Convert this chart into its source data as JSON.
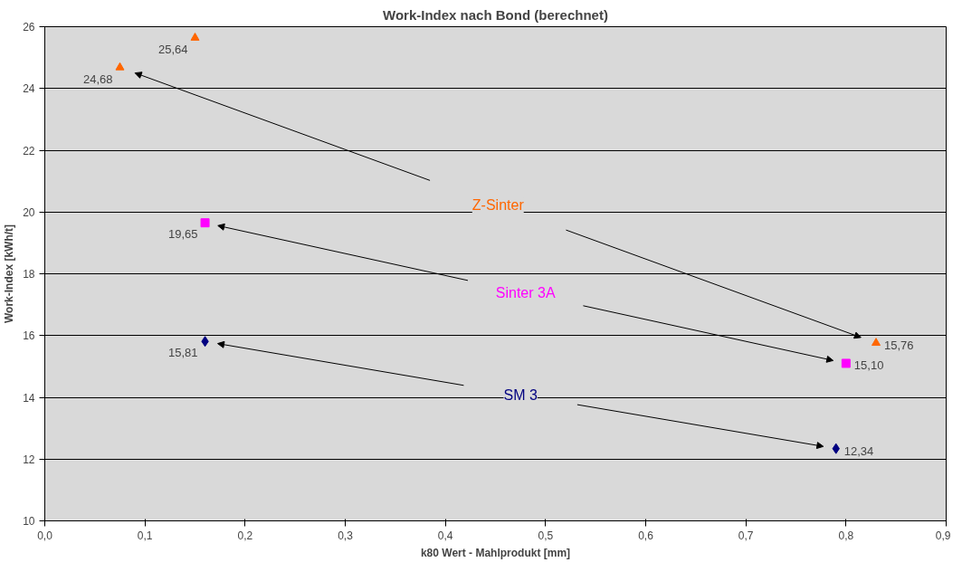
{
  "chart_data": {
    "type": "scatter",
    "title": "Work-Index nach Bond (berechnet)",
    "xlabel": "k80 Wert - Mahlprodukt [mm]",
    "ylabel": "Work-Index [kWh/t]",
    "xlim": [
      0,
      0.9
    ],
    "xticks": [
      {
        "value": 0,
        "label": "0,0"
      },
      {
        "value": 0.1,
        "label": "0,1"
      },
      {
        "value": 0.2,
        "label": "0,2"
      },
      {
        "value": 0.3,
        "label": "0,3"
      },
      {
        "value": 0.4,
        "label": "0,4"
      },
      {
        "value": 0.5,
        "label": "0,5"
      },
      {
        "value": 0.6,
        "label": "0,6"
      },
      {
        "value": 0.7,
        "label": "0,7"
      },
      {
        "value": 0.8,
        "label": "0,8"
      },
      {
        "value": 0.9,
        "label": "0,9"
      }
    ],
    "ylim": [
      10,
      26
    ],
    "yticks": [
      10,
      12,
      14,
      16,
      18,
      20,
      22,
      24,
      26
    ],
    "grid": "y",
    "legend": false,
    "series": [
      {
        "name": "Z-Sinter",
        "color": "#ff6600",
        "marker": "triangle",
        "x": [
          0.075,
          0.15,
          0.83
        ],
        "values": [
          24.68,
          25.64,
          15.76
        ],
        "value_labels": [
          "24,68",
          "25,64",
          "15,76"
        ]
      },
      {
        "name": "Sinter 3A",
        "color": "#ff00ff",
        "marker": "square",
        "x": [
          0.16,
          0.8
        ],
        "values": [
          19.65,
          15.1
        ],
        "value_labels": [
          "19,65",
          "15,10"
        ]
      },
      {
        "name": "SM 3",
        "color": "#000080",
        "marker": "diamond",
        "x": [
          0.16,
          0.79
        ],
        "values": [
          15.81,
          12.34
        ],
        "value_labels": [
          "15,81",
          "12,34"
        ]
      }
    ]
  }
}
